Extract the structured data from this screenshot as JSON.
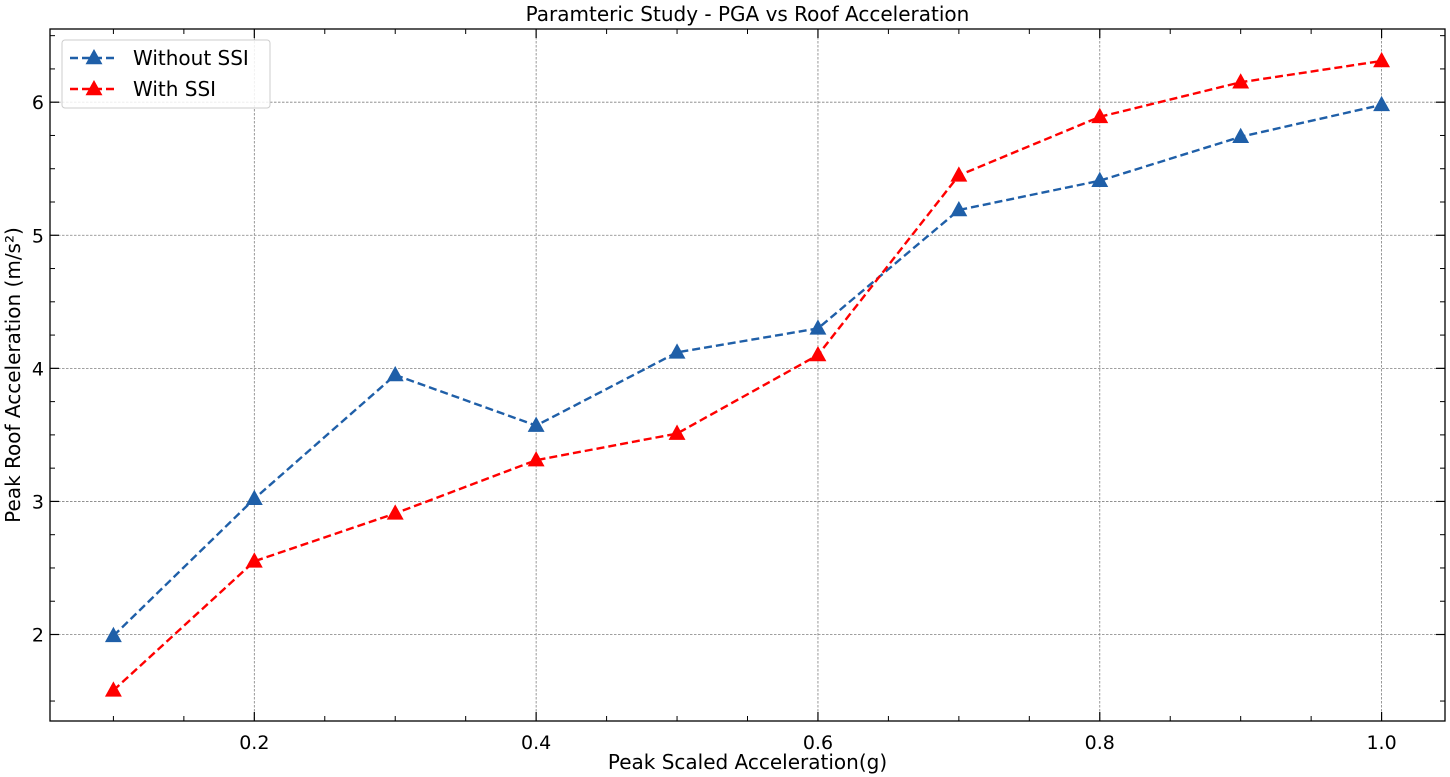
{
  "chart_data": {
    "type": "line",
    "title": "Paramteric Study - PGA vs Roof Acceleration",
    "xlabel": "Peak Scaled Acceleration(g)",
    "ylabel": "Peak Roof Acceleration (m/s²)",
    "xlim": [
      0.055,
      1.045
    ],
    "ylim": [
      1.35,
      6.55
    ],
    "x_ticks": [
      0.2,
      0.4,
      0.6,
      0.8,
      1.0
    ],
    "x_tick_labels": [
      "0.2",
      "0.4",
      "0.6",
      "0.8",
      "1.0"
    ],
    "x_minor_ticks": [
      0.1,
      0.15,
      0.25,
      0.3,
      0.35,
      0.45,
      0.5,
      0.55,
      0.65,
      0.7,
      0.75,
      0.85,
      0.9,
      0.95
    ],
    "y_ticks": [
      2,
      3,
      4,
      5,
      6
    ],
    "y_tick_labels": [
      "2",
      "3",
      "4",
      "5",
      "6"
    ],
    "y_minor_ticks": [
      1.5,
      2.25,
      2.5,
      2.75,
      3.25,
      3.5,
      3.75,
      4.25,
      4.5,
      4.75,
      5.25,
      5.5,
      5.75,
      6.25,
      6.5
    ],
    "grid": true,
    "legend_position": "top-left",
    "x": [
      0.1,
      0.2,
      0.3,
      0.4,
      0.5,
      0.6,
      0.7,
      0.8,
      0.9,
      1.0
    ],
    "series": [
      {
        "name": "Without SSI",
        "color": "#1f5fa8",
        "marker": "triangle",
        "line_style": "dashed",
        "values": [
          1.99,
          3.02,
          3.95,
          3.57,
          4.12,
          4.3,
          5.19,
          5.41,
          5.74,
          5.98
        ]
      },
      {
        "name": "With SSI",
        "color": "#ff0000",
        "marker": "triangle",
        "line_style": "dashed",
        "values": [
          1.58,
          2.55,
          2.91,
          3.31,
          3.51,
          4.1,
          5.45,
          5.89,
          6.15,
          6.31
        ]
      }
    ]
  }
}
